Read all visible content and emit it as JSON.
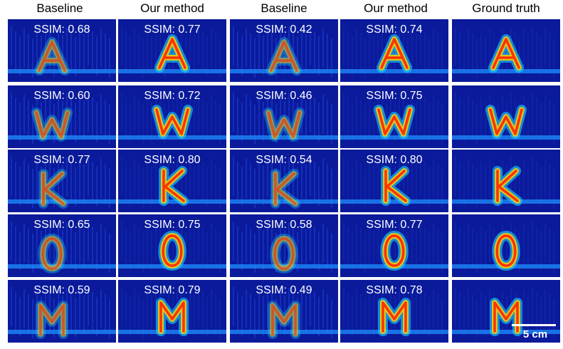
{
  "columns": [
    "Baseline",
    "Our method",
    "Baseline",
    "Our method",
    "Ground truth"
  ],
  "rows": [
    {
      "letter": "A",
      "ssim": [
        "SSIM: 0.68",
        "SSIM: 0.77",
        "SSIM: 0.42",
        "SSIM: 0.74",
        ""
      ]
    },
    {
      "letter": "W",
      "ssim": [
        "SSIM: 0.60",
        "SSIM: 0.72",
        "SSIM: 0.46",
        "SSIM: 0.75",
        ""
      ]
    },
    {
      "letter": "K",
      "ssim": [
        "SSIM: 0.77",
        "SSIM: 0.80",
        "SSIM: 0.54",
        "SSIM: 0.80",
        ""
      ]
    },
    {
      "letter": "O",
      "ssim": [
        "SSIM: 0.65",
        "SSIM: 0.75",
        "SSIM: 0.58",
        "SSIM: 0.77",
        ""
      ]
    },
    {
      "letter": "M",
      "ssim": [
        "SSIM: 0.59",
        "SSIM: 0.79",
        "SSIM: 0.49",
        "SSIM: 0.78",
        ""
      ]
    }
  ],
  "scale_bar": {
    "label": "5 cm"
  },
  "colors": {
    "background": "#0a1a9a",
    "hot": "#ff2a00",
    "warm": "#ffd000",
    "mid": "#19d6ff",
    "band": "#1f8fff"
  }
}
